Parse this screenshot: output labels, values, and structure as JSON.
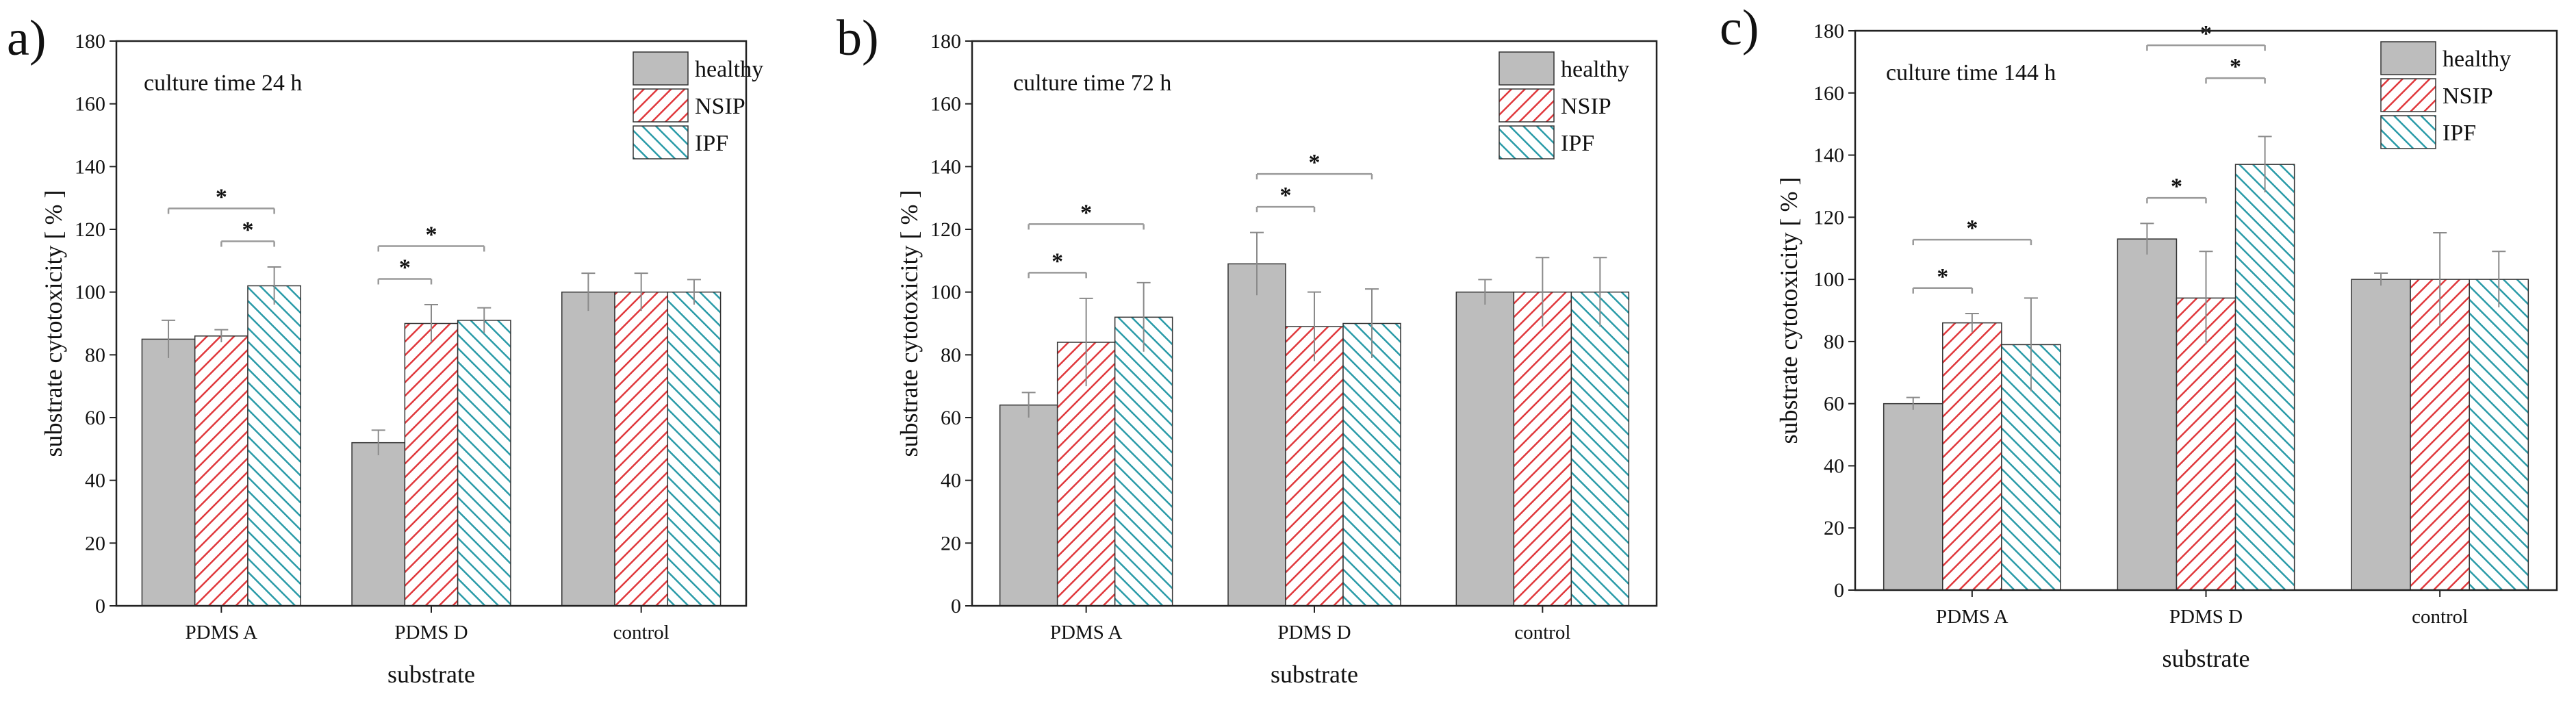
{
  "chart_data": [
    {
      "type": "bar",
      "panel_label": "a)",
      "title": "culture time 24 h",
      "xlabel": "substrate",
      "ylabel": "substrate cytotoxicity [ % ]",
      "ylim": [
        0,
        180
      ],
      "yticks": [
        0,
        20,
        40,
        60,
        80,
        100,
        120,
        140,
        160,
        180
      ],
      "categories": [
        "PDMS A",
        "PDMS D",
        "control"
      ],
      "legend_position": "top-right",
      "series": [
        {
          "name": "healthy",
          "values": [
            85,
            52,
            100
          ],
          "errors": [
            6,
            4,
            6
          ]
        },
        {
          "name": "NSIP",
          "values": [
            86,
            90,
            100
          ],
          "errors": [
            2,
            6,
            6
          ]
        },
        {
          "name": "IPF",
          "values": [
            102,
            91,
            100
          ],
          "errors": [
            6,
            4,
            4
          ]
        }
      ],
      "significance": [
        {
          "category": 0,
          "from": 0,
          "to": 2,
          "label": "*"
        },
        {
          "category": 0,
          "from": 1,
          "to": 2,
          "label": "*"
        },
        {
          "category": 1,
          "from": 0,
          "to": 1,
          "label": "*"
        },
        {
          "category": 1,
          "from": 0,
          "to": 2,
          "label": "*"
        }
      ]
    },
    {
      "type": "bar",
      "panel_label": "b)",
      "title": "culture time 72 h",
      "xlabel": "substrate",
      "ylabel": "substrate cytotoxicity [ % ]",
      "ylim": [
        0,
        180
      ],
      "yticks": [
        0,
        20,
        40,
        60,
        80,
        100,
        120,
        140,
        160,
        180
      ],
      "categories": [
        "PDMS A",
        "PDMS D",
        "control"
      ],
      "legend_position": "top-right",
      "series": [
        {
          "name": "healthy",
          "values": [
            64,
            109,
            100
          ],
          "errors": [
            4,
            10,
            4
          ]
        },
        {
          "name": "NSIP",
          "values": [
            84,
            89,
            100
          ],
          "errors": [
            14,
            11,
            11
          ]
        },
        {
          "name": "IPF",
          "values": [
            92,
            90,
            100
          ],
          "errors": [
            11,
            11,
            11
          ]
        }
      ],
      "significance": [
        {
          "category": 0,
          "from": 0,
          "to": 1,
          "label": "*"
        },
        {
          "category": 0,
          "from": 0,
          "to": 2,
          "label": "*"
        },
        {
          "category": 1,
          "from": 0,
          "to": 1,
          "label": "*"
        },
        {
          "category": 1,
          "from": 0,
          "to": 2,
          "label": "*"
        }
      ]
    },
    {
      "type": "bar",
      "panel_label": "c)",
      "title": "culture time 144 h",
      "xlabel": "substrate",
      "ylabel": "substrate cytotoxicity [ % ]",
      "ylim": [
        0,
        180
      ],
      "yticks": [
        0,
        20,
        40,
        60,
        80,
        100,
        120,
        140,
        160,
        180
      ],
      "categories": [
        "PDMS A",
        "PDMS D",
        "control"
      ],
      "legend_position": "top-right",
      "series": [
        {
          "name": "healthy",
          "values": [
            60,
            113,
            100
          ],
          "errors": [
            2,
            5,
            2
          ]
        },
        {
          "name": "NSIP",
          "values": [
            86,
            94,
            100
          ],
          "errors": [
            3,
            15,
            15
          ]
        },
        {
          "name": "IPF",
          "values": [
            79,
            137,
            100
          ],
          "errors": [
            15,
            9,
            9
          ]
        }
      ],
      "significance": [
        {
          "category": 0,
          "from": 0,
          "to": 1,
          "label": "*"
        },
        {
          "category": 0,
          "from": 0,
          "to": 2,
          "label": "*"
        },
        {
          "category": 1,
          "from": 0,
          "to": 1,
          "label": "*"
        },
        {
          "category": 1,
          "from": 1,
          "to": 2,
          "label": "*"
        },
        {
          "category": 1,
          "from": 0,
          "to": 2,
          "label": "*"
        }
      ]
    }
  ],
  "colors": {
    "healthy_fill": "#bdbdbd",
    "nsip_fill": "#ffffff",
    "nsip_hatch": "#e0383c",
    "ipf_fill": "#ffffff",
    "ipf_hatch": "#2a9ba8",
    "axis": "#222222",
    "error_bar": "#8a8a8a",
    "significance": "#9a9a9a"
  }
}
